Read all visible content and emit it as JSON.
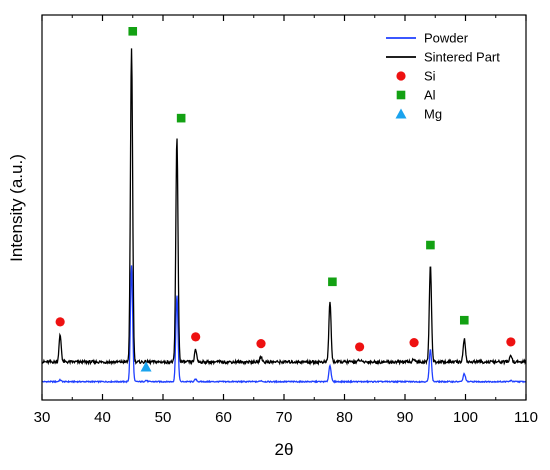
{
  "chart_data": {
    "type": "line",
    "xlabel": "2θ",
    "ylabel": "Intensity (a.u.)",
    "xlim": [
      30,
      110
    ],
    "x_ticks": [
      30,
      40,
      50,
      60,
      70,
      80,
      90,
      100,
      110
    ],
    "y_ticks_shown": false,
    "grid": false,
    "legend_position": "top-right",
    "series": [
      {
        "name": "Powder",
        "color": "#1f3fff",
        "baseline": 0.1,
        "peaks": [
          {
            "x": 33.0,
            "y": 0.6
          },
          {
            "x": 44.8,
            "y": 35.0
          },
          {
            "x": 47.2,
            "y": 0.5
          },
          {
            "x": 52.3,
            "y": 26.0
          },
          {
            "x": 55.4,
            "y": 0.8
          },
          {
            "x": 66.2,
            "y": 0.4
          },
          {
            "x": 77.6,
            "y": 5.0
          },
          {
            "x": 94.2,
            "y": 10.0
          },
          {
            "x": 99.8,
            "y": 2.5
          },
          {
            "x": 107.5,
            "y": 0.4
          }
        ]
      },
      {
        "name": "Sintered Part",
        "color": "#000000",
        "baseline": 6.0,
        "peaks": [
          {
            "x": 33.0,
            "y": 14.0
          },
          {
            "x": 44.8,
            "y": 100.0
          },
          {
            "x": 52.3,
            "y": 73.0
          },
          {
            "x": 55.4,
            "y": 9.6
          },
          {
            "x": 66.2,
            "y": 7.6
          },
          {
            "x": 77.6,
            "y": 24.0
          },
          {
            "x": 82.5,
            "y": 6.6
          },
          {
            "x": 91.5,
            "y": 7.0
          },
          {
            "x": 94.2,
            "y": 35.0
          },
          {
            "x": 99.8,
            "y": 13.0
          },
          {
            "x": 107.5,
            "y": 8.0
          }
        ]
      }
    ],
    "markers": [
      {
        "phase": "Si",
        "shape": "circle",
        "color": "#ee1111",
        "points": [
          {
            "x": 33.0,
            "y": 18.0
          },
          {
            "x": 55.4,
            "y": 13.5
          },
          {
            "x": 66.2,
            "y": 11.5
          },
          {
            "x": 82.5,
            "y": 10.5
          },
          {
            "x": 91.5,
            "y": 11.8
          },
          {
            "x": 107.5,
            "y": 12.0
          }
        ]
      },
      {
        "phase": "Al",
        "shape": "square",
        "color": "#13a113",
        "points": [
          {
            "x": 45.0,
            "y": 105.0
          },
          {
            "x": 53.0,
            "y": 79.0
          },
          {
            "x": 78.0,
            "y": 30.0
          },
          {
            "x": 94.2,
            "y": 41.0
          },
          {
            "x": 99.8,
            "y": 18.5
          }
        ]
      },
      {
        "phase": "Mg",
        "shape": "triangle",
        "color": "#1aa3ee",
        "points": [
          {
            "x": 47.2,
            "y": 4.5
          }
        ]
      }
    ],
    "legend": [
      {
        "label": "Powder",
        "kind": "line",
        "color": "#1f3fff"
      },
      {
        "label": "Sintered Part",
        "kind": "line",
        "color": "#000000"
      },
      {
        "label": "Si",
        "kind": "circle",
        "color": "#ee1111"
      },
      {
        "label": "Al",
        "kind": "square",
        "color": "#13a113"
      },
      {
        "label": "Mg",
        "kind": "triangle",
        "color": "#1aa3ee"
      }
    ]
  }
}
